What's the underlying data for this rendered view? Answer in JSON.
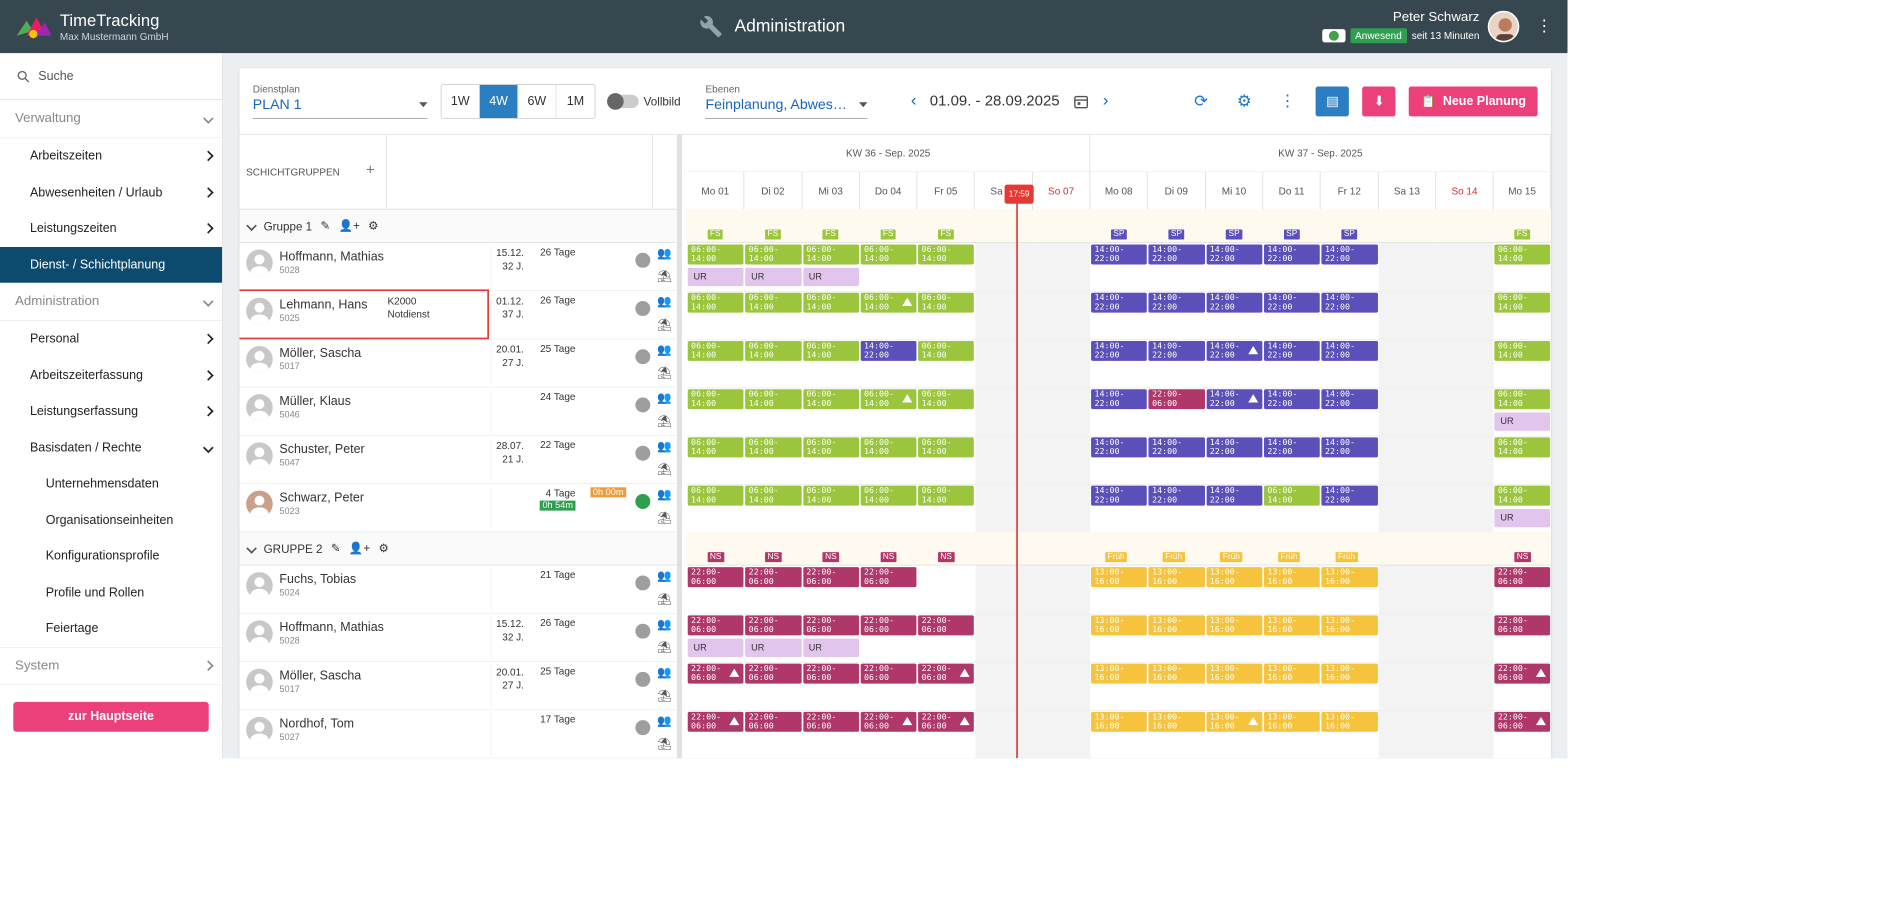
{
  "app": {
    "title": "TimeTracking",
    "company": "Max Mustermann GmbH",
    "section": "Administration"
  },
  "user": {
    "name": "Peter Schwarz",
    "status": "Anwesend",
    "since": "seit 13 Minuten"
  },
  "sidebar": {
    "search": "Suche",
    "groups": [
      {
        "label": "Verwaltung",
        "items": [
          "Arbeitszeiten",
          "Abwesenheiten / Urlaub",
          "Leistungszeiten",
          "Dienst- / Schichtplanung"
        ]
      },
      {
        "label": "Administration",
        "items": [
          "Personal",
          "Arbeitszeiterfassung",
          "Leistungserfassung",
          "Basisdaten / Rechte"
        ],
        "sub": [
          "Unternehmensdaten",
          "Organisationseinheiten",
          "Konfigurationsprofile",
          "Profile und Rollen",
          "Feiertage"
        ]
      },
      {
        "label": "System"
      }
    ],
    "home_button": "zur Hauptseite"
  },
  "toolbar": {
    "dienstplan_label": "Dienstplan",
    "dienstplan_value": "PLAN 1",
    "ranges": [
      "1W",
      "4W",
      "6W",
      "1M"
    ],
    "range_selected": "4W",
    "vollbild": "Vollbild",
    "ebenen_label": "Ebenen",
    "ebenen_value": "Feinplanung, Abwes…",
    "date_range": "01.09. - 28.09.2025",
    "new_plan": "Neue Planung"
  },
  "grid": {
    "header_label": "SCHICHTGRUPPEN",
    "weeks": [
      "KW 36 - Sep. 2025",
      "KW 37 - Sep. 2025"
    ],
    "days": [
      "Mo 01",
      "Di 02",
      "Mi 03",
      "Do 04",
      "Fr 05",
      "Sa 06",
      "So 07",
      "Mo 08",
      "Di 09",
      "Mi 10",
      "Do 11",
      "Fr 12",
      "Sa 13",
      "So 14",
      "Mo 15"
    ],
    "now": "17:59",
    "groups": [
      {
        "name": "Gruppe 1",
        "day_labels": [
          "FS",
          "FS",
          "FS",
          "FS",
          "FS",
          "",
          "",
          "SP",
          "SP",
          "SP",
          "SP",
          "SP",
          "",
          "",
          "FS"
        ],
        "rows": [
          {
            "name": "Hoffmann, Mathias",
            "id": "5028",
            "note1": "",
            "note2": "",
            "date": "15.12.",
            "age": "32 J.",
            "tage": "26 Tage"
          },
          {
            "name": "Lehmann, Hans",
            "id": "5025",
            "note1": "K2000",
            "note2": "Notdienst",
            "date": "01.12.",
            "age": "37 J.",
            "tage": "26 Tage"
          },
          {
            "name": "Möller, Sascha",
            "id": "5017",
            "note1": "",
            "note2": "",
            "date": "20.01.",
            "age": "27 J.",
            "tage": "25 Tage"
          },
          {
            "name": "Müller, Klaus",
            "id": "5046",
            "note1": "",
            "note2": "",
            "date": "",
            "age": "",
            "tage": "24 Tage"
          },
          {
            "name": "Schuster, Peter",
            "id": "5047",
            "note1": "",
            "note2": "",
            "date": "28.07.",
            "age": "21 J.",
            "tage": "22 Tage"
          },
          {
            "name": "Schwarz, Peter",
            "id": "5023",
            "note1": "",
            "note2": "",
            "date": "",
            "age": "",
            "tage": "4 Tage",
            "time_ok": "0h 54m",
            "time_warn": "0h 00m"
          }
        ]
      },
      {
        "name": "GRUPPE 2",
        "day_labels": [
          "NS",
          "NS",
          "NS",
          "NS",
          "NS",
          "",
          "",
          "Früh",
          "Früh",
          "Früh",
          "Früh",
          "Früh",
          "",
          "",
          "NS"
        ],
        "rows": [
          {
            "name": "Fuchs, Tobias",
            "id": "5024",
            "date": "",
            "age": "",
            "tage": "21 Tage"
          },
          {
            "name": "Hoffmann, Mathias",
            "id": "5028",
            "date": "15.12.",
            "age": "32 J.",
            "tage": "26 Tage"
          },
          {
            "name": "Möller, Sascha",
            "id": "5017",
            "date": "20.01.",
            "age": "27 J.",
            "tage": "25 Tage"
          },
          {
            "name": "Nordhof, Tom",
            "id": "5027",
            "date": "",
            "age": "",
            "tage": "17 Tage"
          }
        ]
      }
    ],
    "shift_texts": {
      "early": "06:00-\n14:00",
      "late": "14:00-\n22:00",
      "night_a": "22:00-\n06:00",
      "noon": "13:00-\n16:00",
      "ur": "UR"
    },
    "colors": {
      "early": "#9bc53d",
      "late": "#5b4fb9",
      "night": "#b0376a",
      "noon": "#f6c33d",
      "ur": "#e1c5ec",
      "accent": "#2b7ec1",
      "pink": "#ec407a"
    }
  }
}
